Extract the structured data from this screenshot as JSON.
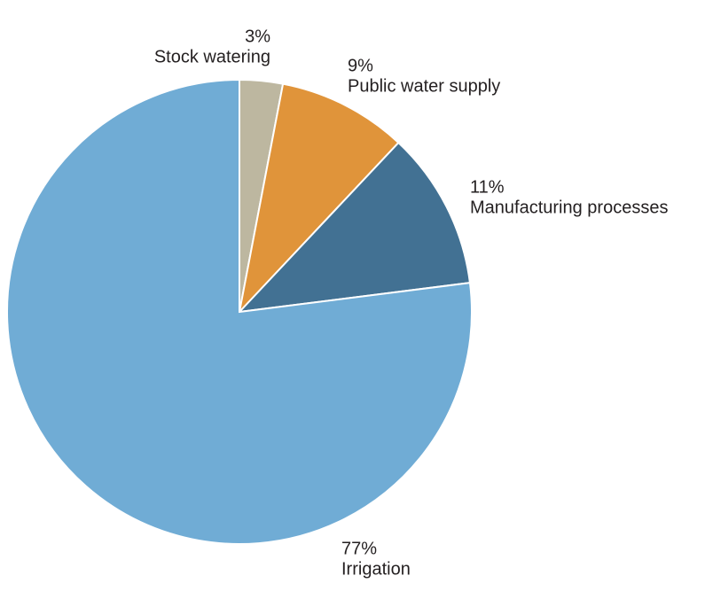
{
  "chart_data": {
    "type": "pie",
    "categories": [
      "Stock watering",
      "Public water supply",
      "Manufacturing processes",
      "Irrigation"
    ],
    "values": [
      3,
      9,
      11,
      77
    ],
    "value_labels": [
      "3%",
      "9%",
      "11%",
      "77%"
    ],
    "colors": [
      "#bdb7a0",
      "#e0943a",
      "#427193",
      "#70acd5"
    ]
  }
}
